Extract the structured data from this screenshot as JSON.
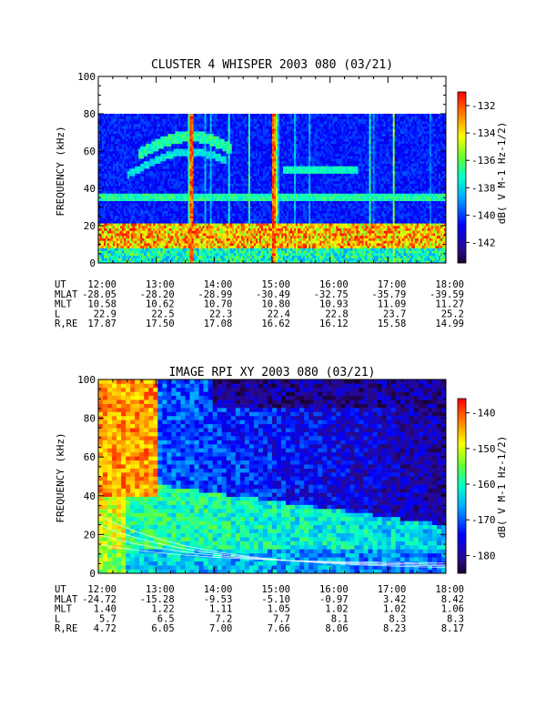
{
  "chart_data": [
    {
      "type": "heatmap",
      "title": "CLUSTER 4 WHISPER 2003 080 (03/21)",
      "ylabel": "FREQUENCY (kHz)",
      "ylim": [
        0,
        100
      ],
      "data_ymax": 80,
      "yticks": [
        0,
        20,
        40,
        60,
        80,
        100
      ],
      "xlim_hours": [
        12,
        18
      ],
      "xticks": [
        "12:00",
        "13:00",
        "14:00",
        "15:00",
        "16:00",
        "17:00",
        "18:00"
      ],
      "colorbar": {
        "label": "dB( V M⁻¹ Hz⁻¹ᐟ²)",
        "label_text": "dB( V M-1 Hz-1/2)",
        "range": [
          -143.5,
          -131
        ],
        "ticks": [
          -132,
          -134,
          -136,
          -138,
          -140,
          -142
        ]
      },
      "ephemeris": [
        {
          "label": "UT",
          "values": [
            "12:00",
            "13:00",
            "14:00",
            "15:00",
            "16:00",
            "17:00",
            "18:00"
          ]
        },
        {
          "label": "MLAT",
          "values": [
            "-28.05",
            "-28.20",
            "-28.99",
            "-30.49",
            "-32.75",
            "-35.79",
            "-39.59"
          ]
        },
        {
          "label": "MLT",
          "values": [
            "10.58",
            "10.62",
            "10.70",
            "10.80",
            "10.93",
            "11.09",
            "11.27"
          ]
        },
        {
          "label": "L",
          "values": [
            "22.9",
            "22.5",
            "22.3",
            "22.4",
            "22.8",
            "23.7",
            "25.2"
          ]
        },
        {
          "label": "R,RE",
          "values": [
            "17.87",
            "17.50",
            "17.08",
            "16.62",
            "16.12",
            "15.58",
            "14.99"
          ]
        }
      ]
    },
    {
      "type": "heatmap",
      "title": "IMAGE RPI XY 2003 080 (03/21)",
      "ylabel": "FREQUENCY (kHz)",
      "ylim": [
        0,
        100
      ],
      "data_ymax": 100,
      "yticks": [
        0,
        20,
        40,
        60,
        80,
        100
      ],
      "xlim_hours": [
        12,
        18
      ],
      "xticks": [
        "12:00",
        "13:00",
        "14:00",
        "15:00",
        "16:00",
        "17:00",
        "18:00"
      ],
      "colorbar": {
        "label_text": "dB( V M-1 Hz-1/2)",
        "range": [
          -185,
          -136
        ],
        "ticks": [
          -140,
          -150,
          -160,
          -170,
          -180
        ]
      },
      "ephemeris": [
        {
          "label": "UT",
          "values": [
            "12:00",
            "13:00",
            "14:00",
            "15:00",
            "16:00",
            "17:00",
            "18:00"
          ]
        },
        {
          "label": "MLAT",
          "values": [
            "-24.72",
            "-15.28",
            "-9.53",
            "-5.10",
            "-0.97",
            "3.42",
            "8.42"
          ]
        },
        {
          "label": "MLT",
          "values": [
            "1.40",
            "1.22",
            "1.11",
            "1.05",
            "1.02",
            "1.02",
            "1.06"
          ]
        },
        {
          "label": "L",
          "values": [
            "5.7",
            "6.5",
            "7.2",
            "7.7",
            "8.1",
            "8.3",
            "8.3"
          ]
        },
        {
          "label": "R,RE",
          "values": [
            "4.72",
            "6.05",
            "7.00",
            "7.66",
            "8.06",
            "8.23",
            "8.17"
          ]
        }
      ]
    }
  ]
}
